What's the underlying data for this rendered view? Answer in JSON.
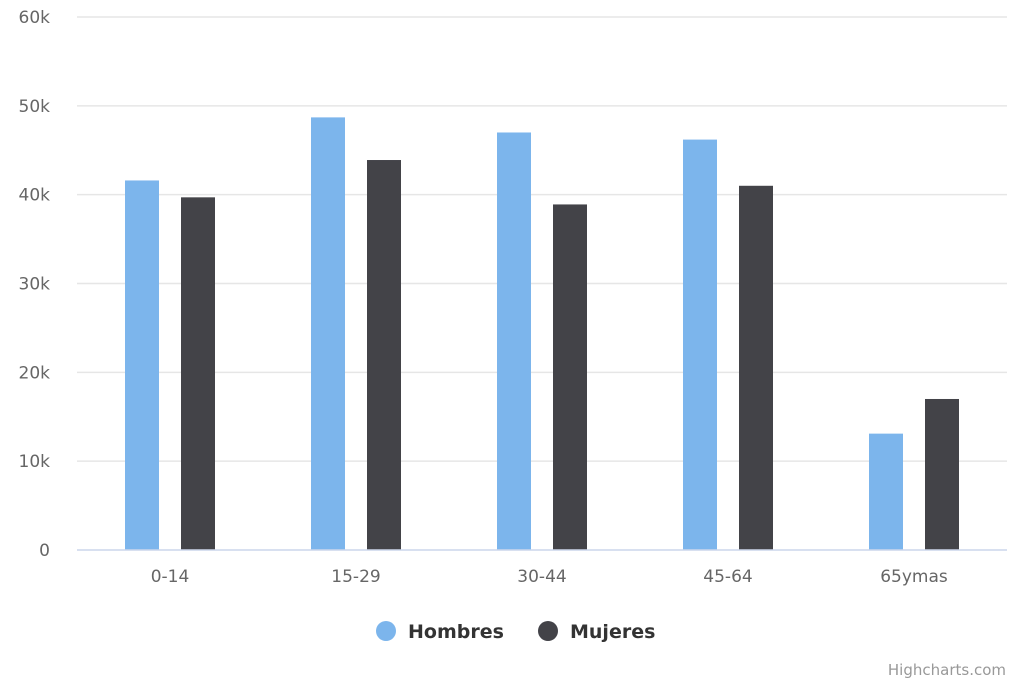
{
  "chart_data": {
    "type": "bar",
    "categories": [
      "0-14",
      "15-29",
      "30-44",
      "45-64",
      "65ymas"
    ],
    "series": [
      {
        "name": "Hombres",
        "values": [
          41600,
          48700,
          47000,
          46200,
          13100
        ],
        "color": "#7cb5ec"
      },
      {
        "name": "Mujeres",
        "values": [
          39700,
          43900,
          38900,
          41000,
          17000
        ],
        "color": "#434348"
      }
    ],
    "ylim": [
      0,
      60000
    ],
    "yticks": [
      0,
      10000,
      20000,
      30000,
      40000,
      50000,
      60000
    ],
    "ytick_labels": [
      "0",
      "10k",
      "20k",
      "30k",
      "40k",
      "50k",
      "60k"
    ],
    "grid": true,
    "legend_position": "bottom-center",
    "title": "",
    "xlabel": "",
    "ylabel": ""
  },
  "credits": "Highcharts.com",
  "colors": {
    "grid": "#e6e6e6",
    "axis_line": "#ccd6eb"
  }
}
